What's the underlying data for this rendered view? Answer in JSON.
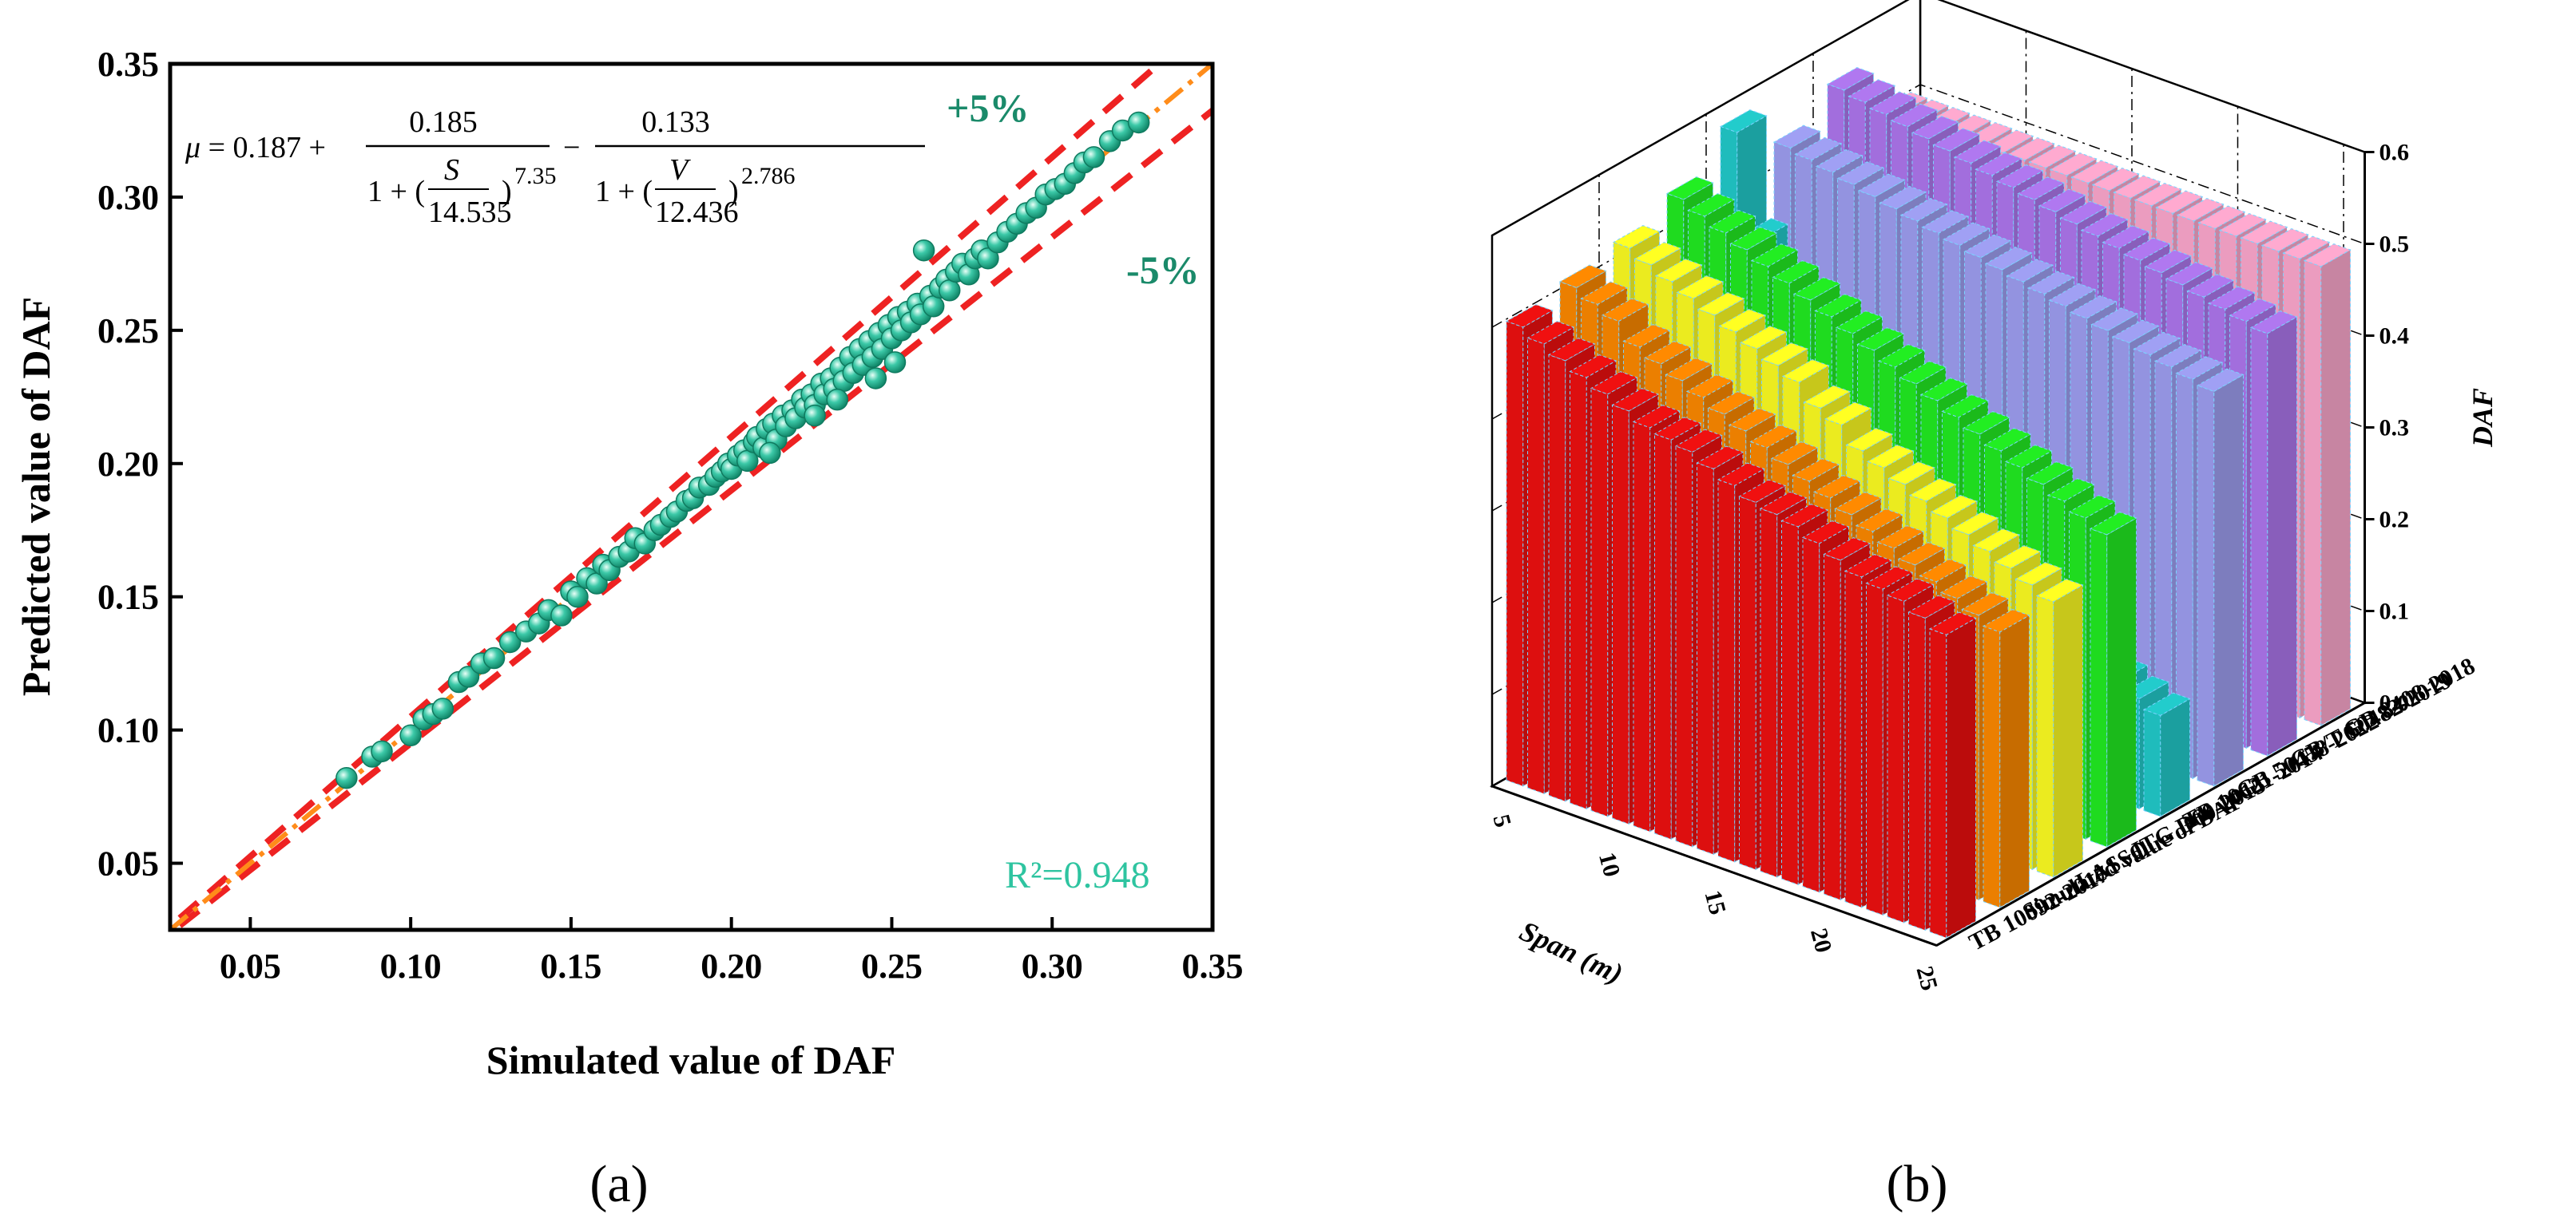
{
  "chart_data": [
    {
      "panel": "a",
      "type": "scatter",
      "caption": "(a)",
      "xlabel": "Simulated value of DAF",
      "ylabel": "Predicted value of DAF",
      "xlim": [
        0.025,
        0.35
      ],
      "ylim": [
        0.025,
        0.35
      ],
      "xticks": [
        "0.05",
        "0.10",
        "0.15",
        "0.20",
        "0.25",
        "0.30",
        "0.35"
      ],
      "yticks": [
        "0.05",
        "0.10",
        "0.15",
        "0.20",
        "0.25",
        "0.30",
        "0.35"
      ],
      "equation": {
        "lhs": "μ",
        "const": "= 0.187 +",
        "term1_num": "0.185",
        "term1_den_prefix": "1 + (",
        "term1_var": "S",
        "term1_div": "14.535",
        "term1_exp": "7.35",
        "minus": "−",
        "term2_num": "0.133",
        "term2_den_prefix": "1 + (",
        "term2_var": "V",
        "term2_div": "12.436",
        "term2_exp": "2.786"
      },
      "band_upper_label": "+5%",
      "band_lower_label": "-5%",
      "r2_label": "R²=0.948",
      "band_pct": 0.05,
      "colors": {
        "points": "#3cc9a8",
        "fit": "#ff8c1a",
        "band": "#ee2222"
      },
      "points": [
        [
          0.08,
          0.082
        ],
        [
          0.088,
          0.09
        ],
        [
          0.091,
          0.092
        ],
        [
          0.1,
          0.098
        ],
        [
          0.104,
          0.104
        ],
        [
          0.107,
          0.106
        ],
        [
          0.11,
          0.108
        ],
        [
          0.115,
          0.118
        ],
        [
          0.118,
          0.12
        ],
        [
          0.122,
          0.125
        ],
        [
          0.126,
          0.127
        ],
        [
          0.131,
          0.133
        ],
        [
          0.136,
          0.137
        ],
        [
          0.14,
          0.14
        ],
        [
          0.143,
          0.145
        ],
        [
          0.147,
          0.143
        ],
        [
          0.15,
          0.152
        ],
        [
          0.152,
          0.15
        ],
        [
          0.155,
          0.157
        ],
        [
          0.158,
          0.155
        ],
        [
          0.16,
          0.162
        ],
        [
          0.162,
          0.16
        ],
        [
          0.165,
          0.165
        ],
        [
          0.168,
          0.167
        ],
        [
          0.17,
          0.172
        ],
        [
          0.173,
          0.17
        ],
        [
          0.176,
          0.175
        ],
        [
          0.178,
          0.177
        ],
        [
          0.181,
          0.18
        ],
        [
          0.183,
          0.182
        ],
        [
          0.186,
          0.186
        ],
        [
          0.188,
          0.187
        ],
        [
          0.19,
          0.191
        ],
        [
          0.193,
          0.192
        ],
        [
          0.195,
          0.195
        ],
        [
          0.197,
          0.197
        ],
        [
          0.199,
          0.2
        ],
        [
          0.2,
          0.198
        ],
        [
          0.202,
          0.203
        ],
        [
          0.204,
          0.205
        ],
        [
          0.205,
          0.201
        ],
        [
          0.207,
          0.208
        ],
        [
          0.208,
          0.21
        ],
        [
          0.21,
          0.206
        ],
        [
          0.211,
          0.213
        ],
        [
          0.213,
          0.215
        ],
        [
          0.214,
          0.209
        ],
        [
          0.216,
          0.218
        ],
        [
          0.217,
          0.214
        ],
        [
          0.219,
          0.22
        ],
        [
          0.22,
          0.217
        ],
        [
          0.222,
          0.224
        ],
        [
          0.223,
          0.221
        ],
        [
          0.225,
          0.226
        ],
        [
          0.226,
          0.222
        ],
        [
          0.228,
          0.23
        ],
        [
          0.229,
          0.226
        ],
        [
          0.231,
          0.232
        ],
        [
          0.232,
          0.228
        ],
        [
          0.234,
          0.236
        ],
        [
          0.235,
          0.231
        ],
        [
          0.237,
          0.24
        ],
        [
          0.238,
          0.234
        ],
        [
          0.24,
          0.243
        ],
        [
          0.241,
          0.237
        ],
        [
          0.243,
          0.246
        ],
        [
          0.244,
          0.24
        ],
        [
          0.246,
          0.249
        ],
        [
          0.247,
          0.243
        ],
        [
          0.249,
          0.252
        ],
        [
          0.25,
          0.247
        ],
        [
          0.252,
          0.255
        ],
        [
          0.253,
          0.25
        ],
        [
          0.255,
          0.257
        ],
        [
          0.256,
          0.253
        ],
        [
          0.258,
          0.26
        ],
        [
          0.259,
          0.256
        ],
        [
          0.26,
          0.28
        ],
        [
          0.262,
          0.263
        ],
        [
          0.263,
          0.259
        ],
        [
          0.265,
          0.266
        ],
        [
          0.267,
          0.269
        ],
        [
          0.268,
          0.265
        ],
        [
          0.27,
          0.272
        ],
        [
          0.272,
          0.275
        ],
        [
          0.274,
          0.271
        ],
        [
          0.276,
          0.277
        ],
        [
          0.278,
          0.28
        ],
        [
          0.28,
          0.277
        ],
        [
          0.283,
          0.283
        ],
        [
          0.286,
          0.287
        ],
        [
          0.289,
          0.29
        ],
        [
          0.292,
          0.294
        ],
        [
          0.295,
          0.296
        ],
        [
          0.298,
          0.301
        ],
        [
          0.301,
          0.303
        ],
        [
          0.304,
          0.305
        ],
        [
          0.307,
          0.309
        ],
        [
          0.31,
          0.313
        ],
        [
          0.313,
          0.315
        ],
        [
          0.318,
          0.321
        ],
        [
          0.322,
          0.325
        ],
        [
          0.327,
          0.328
        ],
        [
          0.245,
          0.232
        ],
        [
          0.251,
          0.238
        ],
        [
          0.233,
          0.224
        ],
        [
          0.226,
          0.218
        ],
        [
          0.212,
          0.204
        ]
      ]
    },
    {
      "panel": "b",
      "type": "bar3d",
      "caption": "(b)",
      "xlabel": "Span (m)",
      "zlabel": "DAF",
      "span_ticks": [
        "5",
        "10",
        "15",
        "20",
        "25"
      ],
      "z_ticks": [
        "0.0",
        "0.1",
        "0.2",
        "0.3",
        "0.4",
        "0.5",
        "0.6"
      ],
      "zlim": [
        0,
        0.6
      ],
      "spans": [
        5,
        6,
        7,
        8,
        9,
        10,
        11,
        12,
        13,
        14,
        15,
        16,
        17,
        18,
        19,
        20,
        21,
        22,
        23,
        24,
        25
      ],
      "series": [
        {
          "name": "TB 10092-2017",
          "color": "#f01010",
          "values": [
            0.5,
            0.49,
            0.48,
            0.47,
            0.46,
            0.45,
            0.44,
            0.435,
            0.43,
            0.42,
            0.41,
            0.4,
            0.395,
            0.39,
            0.38,
            0.37,
            0.36,
            0.355,
            0.35,
            0.34,
            0.33
          ]
        },
        {
          "name": "Simulated value of DAF",
          "color": "#ff8a00",
          "values": [
            0.51,
            0.5,
            0.49,
            0.47,
            0.46,
            0.45,
            0.44,
            0.43,
            0.42,
            0.41,
            0.4,
            0.39,
            0.38,
            0.37,
            0.36,
            0.35,
            0.34,
            0.33,
            0.32,
            0.31,
            0.3
          ]
        },
        {
          "name": "LASSO",
          "color": "#ffff22",
          "values": [
            0.52,
            0.51,
            0.5,
            0.49,
            0.48,
            0.47,
            0.46,
            0.45,
            0.44,
            0.42,
            0.41,
            0.39,
            0.38,
            0.37,
            0.36,
            0.35,
            0.34,
            0.33,
            0.32,
            0.31,
            0.3
          ]
        },
        {
          "name": "JTG D60-2015",
          "color": "#22ee22",
          "values": [
            0.54,
            0.53,
            0.52,
            0.51,
            0.5,
            0.49,
            0.48,
            0.47,
            0.46,
            0.45,
            0.44,
            0.43,
            0.42,
            0.41,
            0.4,
            0.39,
            0.38,
            0.37,
            0.36,
            0.35,
            0.34
          ]
        },
        {
          "name": "TB 10621-2014",
          "color": "#22cccc",
          "values": [
            0.58,
            0.47,
            0.4,
            0.36,
            0.33,
            0.3,
            0.28,
            0.26,
            0.24,
            0.22,
            0.21,
            0.2,
            0.19,
            0.18,
            0.17,
            0.16,
            0.15,
            0.14,
            0.13,
            0.12,
            0.11
          ]
        },
        {
          "name": "GB 50458-2022",
          "color": "#a0a0f4",
          "values": [
            0.53,
            0.525,
            0.52,
            0.515,
            0.51,
            0.505,
            0.5,
            0.495,
            0.49,
            0.485,
            0.48,
            0.475,
            0.47,
            0.465,
            0.46,
            0.455,
            0.45,
            0.445,
            0.44,
            0.435,
            0.43
          ]
        },
        {
          "name": "GB/T 50482-2019",
          "color": "#b078f0",
          "values": [
            0.56,
            0.555,
            0.55,
            0.545,
            0.54,
            0.535,
            0.53,
            0.525,
            0.52,
            0.515,
            0.51,
            0.505,
            0.5,
            0.495,
            0.49,
            0.485,
            0.48,
            0.475,
            0.47,
            0.465,
            0.46
          ]
        },
        {
          "name": "GB 8408-2018",
          "color": "#ffaad0",
          "values": [
            0.5,
            0.5,
            0.5,
            0.5,
            0.5,
            0.5,
            0.5,
            0.5,
            0.5,
            0.5,
            0.5,
            0.5,
            0.5,
            0.5,
            0.5,
            0.5,
            0.5,
            0.5,
            0.5,
            0.5,
            0.5
          ]
        }
      ]
    }
  ]
}
